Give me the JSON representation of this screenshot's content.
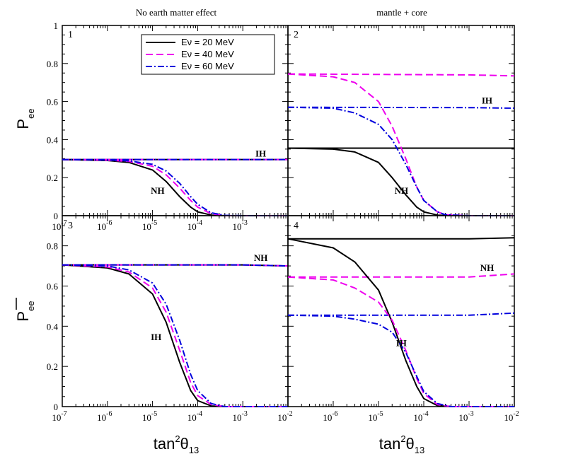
{
  "figure": {
    "col_titles": [
      "No earth matter effect",
      "mantle + core"
    ],
    "ylabel_top": "P",
    "ylabel_top_sub": "ee",
    "ylabel_bottom": "P",
    "ylabel_bottom_sub": "ee",
    "xlabel_left": "tan",
    "xlabel_right": "tan",
    "xlabel_sup": "2",
    "xlabel_theta": "θ",
    "xlabel_sub": "13"
  },
  "legend": {
    "items": [
      {
        "label": "Eν = 20 MeV",
        "color": "#000000",
        "dash": ""
      },
      {
        "label": "Eν = 40 MeV",
        "color": "#ee00ee",
        "dash": "10,5"
      },
      {
        "label": "Eν = 60 MeV",
        "color": "#0000dd",
        "dash": "9,3,2,3"
      }
    ]
  },
  "chart_data": [
    {
      "type": "line",
      "panel": "1",
      "xscale": "log",
      "xlim": [
        1e-07,
        0.01
      ],
      "ylim": [
        0,
        1
      ],
      "yticks": [
        0,
        0.2,
        0.4,
        0.6,
        0.8,
        1
      ],
      "ytick_labels": [
        "0",
        "0.2",
        "0.4",
        "0.6",
        "0.8",
        "1"
      ],
      "xticks": [
        1e-07,
        1e-06,
        1e-05,
        0.0001,
        0.001
      ],
      "xtick_labels": [
        "10",
        "10",
        "10",
        "10",
        "10"
      ],
      "xtick_exps": [
        "-7",
        "-6",
        "-5",
        "-4",
        "-3"
      ],
      "annotations": [
        {
          "text": "IH",
          "x": 0.0025,
          "y": 0.31
        },
        {
          "text": "NH",
          "x": 1.3e-05,
          "y": 0.115
        }
      ],
      "series": [
        {
          "name": "Eν = 20 MeV",
          "x": [
            1e-07,
            0.01
          ],
          "y": [
            0.295,
            0.295
          ]
        },
        {
          "name": "Eν = 40 MeV",
          "x": [
            1e-07,
            0.01
          ],
          "y": [
            0.295,
            0.295
          ]
        },
        {
          "name": "Eν = 60 MeV",
          "x": [
            1e-07,
            0.01
          ],
          "y": [
            0.295,
            0.295
          ]
        },
        {
          "name": "Eν = 20 MeV",
          "x": [
            1e-07,
            1e-06,
            3e-06,
            1e-05,
            2e-05,
            4e-05,
            7e-05,
            0.0001,
            0.0002,
            0.0004,
            0.001,
            0.01
          ],
          "y": [
            0.295,
            0.29,
            0.28,
            0.24,
            0.18,
            0.1,
            0.045,
            0.02,
            0.003,
            0,
            0,
            0
          ]
        },
        {
          "name": "Eν = 40 MeV",
          "x": [
            1e-07,
            1e-06,
            3e-06,
            1e-05,
            2e-05,
            4e-05,
            7e-05,
            0.0001,
            0.0002,
            0.0004,
            0.001,
            0.01
          ],
          "y": [
            0.295,
            0.292,
            0.285,
            0.26,
            0.215,
            0.145,
            0.08,
            0.045,
            0.01,
            0,
            0,
            0
          ]
        },
        {
          "name": "Eν = 60 MeV",
          "x": [
            1e-07,
            1e-06,
            3e-06,
            1e-05,
            2e-05,
            4e-05,
            7e-05,
            0.0001,
            0.0002,
            0.0004,
            0.001,
            0.01
          ],
          "y": [
            0.295,
            0.293,
            0.288,
            0.27,
            0.235,
            0.17,
            0.1,
            0.06,
            0.015,
            0.002,
            0,
            0
          ]
        }
      ]
    },
    {
      "type": "line",
      "panel": "2",
      "xscale": "log",
      "xlim": [
        1e-07,
        0.01
      ],
      "ylim": [
        0,
        1
      ],
      "yticks": [],
      "ytick_labels": [],
      "xticks": [],
      "xtick_labels": [],
      "xtick_exps": [],
      "annotations": [
        {
          "text": "IH",
          "x": 0.0025,
          "y": 0.59
        },
        {
          "text": "NH",
          "x": 3.2e-05,
          "y": 0.115
        }
      ],
      "series": [
        {
          "name": "Eν = 20 MeV",
          "x": [
            1e-07,
            0.01
          ],
          "y": [
            0.355,
            0.355
          ]
        },
        {
          "name": "Eν = 40 MeV",
          "x": [
            1e-07,
            0.001,
            0.01
          ],
          "y": [
            0.745,
            0.74,
            0.735
          ]
        },
        {
          "name": "Eν = 60 MeV",
          "x": [
            1e-07,
            0.001,
            0.01
          ],
          "y": [
            0.57,
            0.568,
            0.565
          ]
        },
        {
          "name": "Eν = 20 MeV",
          "x": [
            1e-07,
            1e-06,
            3e-06,
            1e-05,
            2e-05,
            4e-05,
            7e-05,
            0.0001,
            0.0002,
            0.0004,
            0.001,
            0.01
          ],
          "y": [
            0.355,
            0.35,
            0.335,
            0.28,
            0.2,
            0.11,
            0.045,
            0.02,
            0.003,
            0,
            0,
            0
          ]
        },
        {
          "name": "Eν = 40 MeV",
          "x": [
            1e-07,
            1e-06,
            3e-06,
            1e-05,
            2e-05,
            4e-05,
            7e-05,
            0.0001,
            0.0002,
            0.0003,
            0.001,
            0.01
          ],
          "y": [
            0.745,
            0.73,
            0.7,
            0.6,
            0.47,
            0.3,
            0.15,
            0.08,
            0.02,
            0.005,
            0,
            0
          ]
        },
        {
          "name": "Eν = 60 MeV",
          "x": [
            1e-07,
            1e-06,
            3e-06,
            1e-05,
            2e-05,
            4e-05,
            7e-05,
            0.0001,
            0.0002,
            0.0003,
            0.001,
            0.01
          ],
          "y": [
            0.57,
            0.565,
            0.54,
            0.48,
            0.4,
            0.27,
            0.15,
            0.08,
            0.02,
            0.005,
            0,
            0
          ]
        }
      ]
    },
    {
      "type": "line",
      "panel": "3",
      "xscale": "log",
      "xlim": [
        1e-07,
        0.01
      ],
      "ylim": [
        0,
        0.95
      ],
      "yticks": [
        0,
        0.2,
        0.4,
        0.6,
        0.8
      ],
      "ytick_labels": [
        "0",
        "0.2",
        "0.4",
        "0.6",
        "0.8"
      ],
      "xticks": [
        1e-07,
        1e-06,
        1e-05,
        0.0001,
        0.001,
        0.01
      ],
      "xtick_labels": [
        "10",
        "10",
        "10",
        "10",
        "10",
        "10"
      ],
      "xtick_exps": [
        "-7",
        "-6",
        "-5",
        "-4",
        "-3",
        "-2"
      ],
      "annotations": [
        {
          "text": "NH",
          "x": 0.0025,
          "y": 0.725
        },
        {
          "text": "IH",
          "x": 1.2e-05,
          "y": 0.33
        }
      ],
      "series": [
        {
          "name": "Eν = 20 MeV",
          "x": [
            1e-07,
            0.001,
            0.01
          ],
          "y": [
            0.705,
            0.705,
            0.7
          ]
        },
        {
          "name": "Eν = 40 MeV",
          "x": [
            1e-07,
            0.001,
            0.01
          ],
          "y": [
            0.705,
            0.705,
            0.7
          ]
        },
        {
          "name": "Eν = 60 MeV",
          "x": [
            1e-07,
            0.001,
            0.01
          ],
          "y": [
            0.705,
            0.705,
            0.7
          ]
        },
        {
          "name": "Eν = 20 MeV",
          "x": [
            1e-07,
            1e-06,
            3e-06,
            1e-05,
            2e-05,
            4e-05,
            7e-05,
            0.0001,
            0.0002,
            0.0004,
            0.001,
            0.01
          ],
          "y": [
            0.705,
            0.69,
            0.66,
            0.56,
            0.42,
            0.22,
            0.08,
            0.03,
            0.003,
            0,
            0,
            0
          ]
        },
        {
          "name": "Eν = 40 MeV",
          "x": [
            1e-07,
            1e-06,
            3e-06,
            1e-05,
            2e-05,
            4e-05,
            7e-05,
            0.0001,
            0.0002,
            0.0004,
            0.001,
            0.01
          ],
          "y": [
            0.705,
            0.695,
            0.67,
            0.59,
            0.47,
            0.28,
            0.12,
            0.055,
            0.01,
            0,
            0,
            0
          ]
        },
        {
          "name": "Eν = 60 MeV",
          "x": [
            1e-07,
            1e-06,
            3e-06,
            1e-05,
            2e-05,
            4e-05,
            7e-05,
            0.0001,
            0.0002,
            0.0004,
            0.001,
            0.01
          ],
          "y": [
            0.705,
            0.7,
            0.68,
            0.615,
            0.51,
            0.33,
            0.16,
            0.08,
            0.015,
            0,
            0,
            0
          ]
        }
      ]
    },
    {
      "type": "line",
      "panel": "4",
      "xscale": "log",
      "xlim": [
        1e-07,
        0.01
      ],
      "ylim": [
        0,
        0.95
      ],
      "yticks": [],
      "ytick_labels": [],
      "xticks": [
        1e-06,
        1e-05,
        0.0001,
        0.001,
        0.01
      ],
      "xtick_labels": [
        "10",
        "10",
        "10",
        "10",
        "10"
      ],
      "xtick_exps": [
        "-6",
        "-5",
        "-4",
        "-3",
        "-2"
      ],
      "annotations": [
        {
          "text": "NH",
          "x": 0.0025,
          "y": 0.675
        },
        {
          "text": "IH",
          "x": 3.2e-05,
          "y": 0.3
        }
      ],
      "series": [
        {
          "name": "Eν = 20 MeV",
          "x": [
            1e-07,
            0.001,
            0.01
          ],
          "y": [
            0.835,
            0.835,
            0.84
          ]
        },
        {
          "name": "Eν = 40 MeV",
          "x": [
            1e-07,
            0.001,
            0.01
          ],
          "y": [
            0.645,
            0.645,
            0.66
          ]
        },
        {
          "name": "Eν = 60 MeV",
          "x": [
            1e-07,
            0.001,
            0.01
          ],
          "y": [
            0.455,
            0.455,
            0.465
          ]
        },
        {
          "name": "Eν = 20 MeV",
          "x": [
            1e-07,
            1e-06,
            3e-06,
            1e-05,
            2e-05,
            4e-05,
            7e-05,
            0.0001,
            0.0002,
            0.0004,
            0.001,
            0.01
          ],
          "y": [
            0.835,
            0.79,
            0.72,
            0.58,
            0.42,
            0.23,
            0.1,
            0.04,
            0.005,
            0,
            0,
            0
          ]
        },
        {
          "name": "Eν = 40 MeV",
          "x": [
            1e-07,
            1e-06,
            3e-06,
            1e-05,
            2e-05,
            4e-05,
            7e-05,
            0.0001,
            0.0002,
            0.0004,
            0.001,
            0.01
          ],
          "y": [
            0.645,
            0.63,
            0.59,
            0.52,
            0.43,
            0.28,
            0.14,
            0.065,
            0.01,
            0,
            0,
            0
          ]
        },
        {
          "name": "Eν = 60 MeV",
          "x": [
            1e-07,
            1e-06,
            3e-06,
            1e-05,
            2e-05,
            4e-05,
            7e-05,
            0.0001,
            0.0002,
            0.0004,
            0.001,
            0.01
          ],
          "y": [
            0.455,
            0.45,
            0.435,
            0.41,
            0.37,
            0.27,
            0.15,
            0.075,
            0.015,
            0,
            0,
            0
          ]
        }
      ]
    }
  ]
}
